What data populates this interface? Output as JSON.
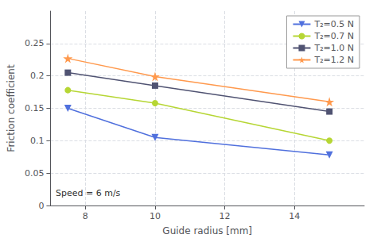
{
  "chart_data": {
    "type": "line",
    "x": [
      7.5,
      10,
      15
    ],
    "series": [
      {
        "name": "T₂=0.5 N",
        "values": [
          0.15,
          0.105,
          0.078
        ],
        "marker": "triangle_down"
      },
      {
        "name": "T₂=0.7 N",
        "values": [
          0.178,
          0.158,
          0.1
        ],
        "marker": "circle"
      },
      {
        "name": "T₂=1.0 N",
        "values": [
          0.205,
          0.185,
          0.145
        ],
        "marker": "square"
      },
      {
        "name": "T₂=1.2 N",
        "values": [
          0.227,
          0.199,
          0.16
        ],
        "marker": "star"
      }
    ],
    "xlabel": "Guide radius [mm]",
    "ylabel": "Friction coefficient",
    "annotation": "Speed = 6 m/s",
    "xlim": [
      7,
      16
    ],
    "ylim": [
      0,
      0.3
    ],
    "xticks": [
      8,
      10,
      12,
      14
    ],
    "yticks": [
      0,
      0.05,
      0.1,
      0.15,
      0.2,
      0.25
    ],
    "grid": true,
    "legend": "upper right"
  }
}
